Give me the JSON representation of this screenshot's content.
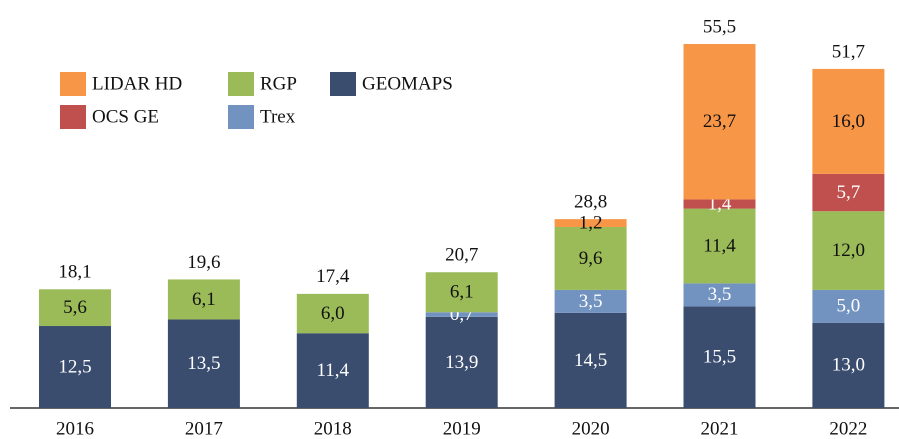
{
  "chart_data": {
    "type": "stacked_bar",
    "categories": [
      "2016",
      "2017",
      "2018",
      "2019",
      "2020",
      "2021",
      "2022"
    ],
    "series": [
      {
        "name": "GEOMAPS",
        "color": "#3a4d6f",
        "values": [
          12.5,
          13.5,
          11.4,
          13.9,
          14.5,
          15.5,
          13.0
        ],
        "value_labels": [
          "12,5",
          "13,5",
          "11,4",
          "13,9",
          "14,5",
          "15,5",
          "13,0"
        ]
      },
      {
        "name": "Trex",
        "color": "#7293c0",
        "values": [
          null,
          null,
          null,
          0.7,
          3.5,
          3.5,
          5.0
        ],
        "value_labels": [
          null,
          null,
          null,
          "0,7",
          "3,5",
          "3,5",
          "5,0"
        ]
      },
      {
        "name": "RGP",
        "color": "#9bbb59",
        "values": [
          5.6,
          6.1,
          6.0,
          6.1,
          9.6,
          11.4,
          12.0
        ],
        "value_labels": [
          "5,6",
          "6,1",
          "6,0",
          "6,1",
          "9,6",
          "11,4",
          "12,0"
        ]
      },
      {
        "name": "OCS GE",
        "color": "#c0504d",
        "values": [
          null,
          null,
          null,
          null,
          null,
          1.4,
          5.7
        ],
        "value_labels": [
          null,
          null,
          null,
          null,
          null,
          "1,4",
          "5,7"
        ]
      },
      {
        "name": "LIDAR HD",
        "color": "#f79646",
        "values": [
          null,
          null,
          null,
          null,
          1.2,
          23.7,
          16.0
        ],
        "value_labels": [
          null,
          null,
          null,
          null,
          "1,2",
          "23,7",
          "16,0"
        ]
      }
    ],
    "totals": {
      "values": [
        18.1,
        19.6,
        17.4,
        20.7,
        28.8,
        55.5,
        51.7
      ],
      "value_labels": [
        "18,1",
        "19,6",
        "17,4",
        "20,7",
        "28,8",
        "55,5",
        "51,7"
      ]
    }
  }
}
